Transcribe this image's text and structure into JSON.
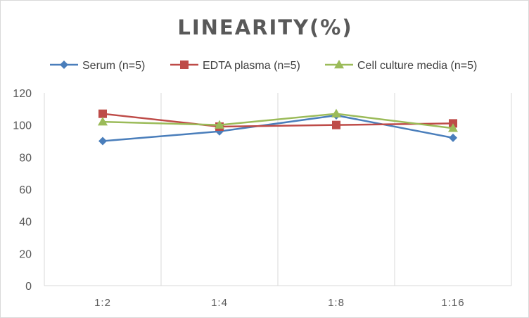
{
  "chart_data": {
    "type": "line",
    "title": "LINEARITY(%)",
    "categories": [
      "1:2",
      "1:4",
      "1:8",
      "1:16"
    ],
    "ylim": [
      0,
      120
    ],
    "yticks": [
      0,
      20,
      40,
      60,
      80,
      100,
      120
    ],
    "grid": "vertical",
    "legend_position": "top",
    "series": [
      {
        "name": "Serum (n=5)",
        "values": [
          90,
          96,
          106,
          92
        ],
        "color": "#4a7ebb",
        "marker": "diamond"
      },
      {
        "name": "EDTA plasma (n=5)",
        "values": [
          107,
          99,
          100,
          101
        ],
        "color": "#be4b48",
        "marker": "square"
      },
      {
        "name": "Cell culture media (n=5)",
        "values": [
          102,
          100,
          107,
          98
        ],
        "color": "#9bbb59",
        "marker": "triangle"
      }
    ]
  }
}
